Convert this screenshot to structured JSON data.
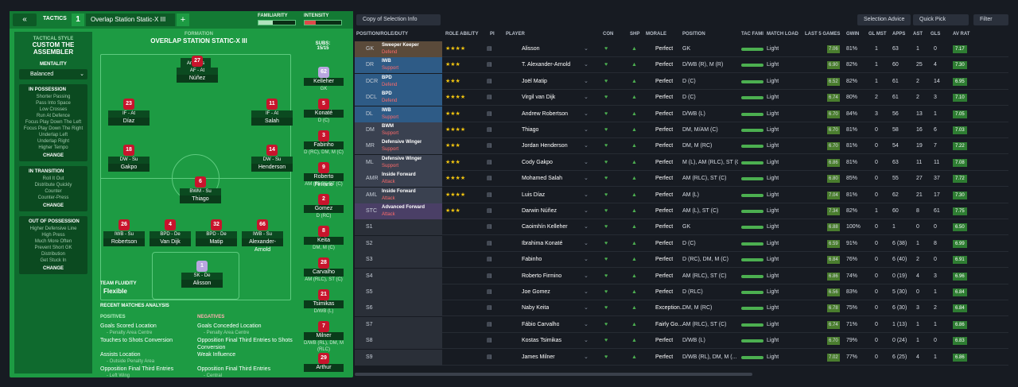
{
  "topbar": {
    "back": "«",
    "tactics": "TACTICS",
    "num": "1",
    "tactic_name": "Overlap Station Static-X III",
    "add": "+",
    "familiarity": "FAMILIARITY",
    "intensity": "INTENSITY",
    "familiarity_level": 0.4,
    "intensity_level": 0.3
  },
  "side": {
    "style_title": "TACTICAL STYLE",
    "style_name": "CUSTOM THE ASSEMBLER",
    "mentality_lbl": "MENTALITY",
    "mentality": "Balanced",
    "boxes": [
      {
        "title": "IN POSSESSION",
        "items": [
          "Shorter Passing",
          "Pass Into Space",
          "Low Crosses",
          "Run At Defence",
          "Focus Play Down The Left",
          "Focus Play Down The Right",
          "Underlap Left",
          "Underlap Right",
          "Higher Tempo"
        ],
        "change": "CHANGE"
      },
      {
        "title": "IN TRANSITION",
        "items": [
          "Roll It Out",
          "Distribute Quickly",
          "Counter",
          "Counter-Press"
        ],
        "change": "CHANGE"
      },
      {
        "title": "OUT OF POSSESSION",
        "items": [
          "Higher Defensive Line",
          "High Press",
          "Much More Often",
          "Prevent Short GK",
          "Distribution",
          "Get Stuck In"
        ],
        "change": "CHANGE"
      }
    ]
  },
  "pitch": {
    "formation_lbl": "FORMATION",
    "formation": "OVERLAP STATION STATIC-X III",
    "analysis": "Analysis",
    "subs_lbl": "SUBS:",
    "subs_count": "15/15",
    "players": [
      {
        "num": "27",
        "role": "AF - At",
        "name": "Núñez"
      },
      {
        "num": "23",
        "role": "IF - At",
        "name": "Díaz"
      },
      {
        "num": "11",
        "role": "IF - At",
        "name": "Salah"
      },
      {
        "num": "18",
        "role": "DW - Su",
        "name": "Gakpo"
      },
      {
        "num": "14",
        "role": "DW - Su",
        "name": "Henderson"
      },
      {
        "num": "6",
        "role": "BWM - Su",
        "name": "Thiago"
      },
      {
        "num": "26",
        "role": "IWB - Su",
        "name": "Robertson"
      },
      {
        "num": "4",
        "role": "BPD - De",
        "name": "Van Dijk"
      },
      {
        "num": "32",
        "role": "BPD - De",
        "name": "Matip"
      },
      {
        "num": "66",
        "role": "IWB - Su",
        "name": "Alexander-Arnold"
      },
      {
        "num": "1",
        "role": "SK - De",
        "name": "Alisson"
      }
    ],
    "subs": [
      {
        "num": "62",
        "name": "Kelleher",
        "pos": "GK"
      },
      {
        "num": "5",
        "name": "Konaté",
        "pos": "D (C)"
      },
      {
        "num": "3",
        "name": "Fabinho",
        "pos": "D (RC), DM, M (C)"
      },
      {
        "num": "9",
        "name": "Roberto Firmino",
        "pos": "AM (RLC), ST (C)"
      },
      {
        "num": "2",
        "name": "Gomez",
        "pos": "D (RC)"
      },
      {
        "num": "8",
        "name": "Keita",
        "pos": "DM, M (C)"
      },
      {
        "num": "28",
        "name": "Carvalho",
        "pos": "AM (RLC), ST (C)"
      },
      {
        "num": "21",
        "name": "Tsimikas",
        "pos": "D/WB (L)"
      },
      {
        "num": "7",
        "name": "Milner",
        "pos": "D/WB (RL), DM, M (RLC)"
      },
      {
        "num": "29",
        "name": "Arthur",
        "pos": ""
      }
    ],
    "fluidity_lbl": "TEAM FLUIDITY",
    "fluidity": "Flexible",
    "recent": "RECENT MATCHES ANALYSIS",
    "positives_lbl": "POSITIVES",
    "negatives_lbl": "NEGATIVES",
    "positives": [
      {
        "t": "Goals Scored Location",
        "s": "- Penalty Area Centre"
      },
      {
        "t": "Touches to Shots Conversion",
        "s": ""
      },
      {
        "t": "Assists Location",
        "s": "- Outside Penalty Area"
      },
      {
        "t": "Opposition Final Third Entries",
        "s": "- Left Wing"
      }
    ],
    "negatives": [
      {
        "t": "Goals Conceded Location",
        "s": "- Penalty Area Centre"
      },
      {
        "t": "Opposition Final Third Entries to Shots Conversion",
        "s": ""
      },
      {
        "t": "Weak Influence",
        "s": ""
      },
      {
        "t": "Opposition Final Third Entries",
        "s": "- Central"
      }
    ]
  },
  "right": {
    "selection_info": "Copy of Selection Info",
    "selection_advice": "Selection Advice",
    "quick_pick": "Quick Pick",
    "filter": "Filter",
    "headers": [
      "POSITION/ROLE/DUTY",
      "ROLE ABILITY",
      "PI",
      "PLAYER",
      "CON",
      "SHP",
      "MORALE",
      "POSITION",
      "TAC FAMI",
      "MATCH LOAD",
      "LAST 5 GAMES",
      "GWIN",
      "GL MST",
      "APPS",
      "AST",
      "GLS",
      "AV RAT"
    ],
    "rows": [
      {
        "pos": "GK",
        "role": "Sweeper Keeper",
        "duty": "Defend",
        "stars": "★★★★",
        "player": "Alisson",
        "morale": "Perfect",
        "position": "GK",
        "load": "Light",
        "form": "7.06",
        "gwin": "81%",
        "glmst": "1",
        "apps": "63",
        "ast": "1",
        "gls": "0",
        "av": "7.17"
      },
      {
        "pos": "DR",
        "role": "IWB",
        "duty": "Support",
        "stars": "★★★",
        "player": "T. Alexander-Arnold",
        "morale": "Perfect",
        "position": "D/WB (R), M (R)",
        "load": "Light",
        "form": "6.90",
        "gwin": "82%",
        "glmst": "1",
        "apps": "60",
        "ast": "25",
        "gls": "4",
        "av": "7.30"
      },
      {
        "pos": "DCR",
        "role": "BPD",
        "duty": "Defend",
        "stars": "★★★",
        "player": "Joël Matip",
        "morale": "Perfect",
        "position": "D (C)",
        "load": "Light",
        "form": "6.52",
        "gwin": "82%",
        "glmst": "1",
        "apps": "61",
        "ast": "2",
        "gls": "14",
        "av": "6.95"
      },
      {
        "pos": "DCL",
        "role": "BPD",
        "duty": "Defend",
        "stars": "★★★★",
        "player": "Virgil van Dijk",
        "morale": "Perfect",
        "position": "D (C)",
        "load": "Light",
        "form": "6.74",
        "gwin": "80%",
        "glmst": "2",
        "apps": "61",
        "ast": "2",
        "gls": "3",
        "av": "7.10"
      },
      {
        "pos": "DL",
        "role": "IWB",
        "duty": "Support",
        "stars": "★★★",
        "player": "Andrew Robertson",
        "morale": "Perfect",
        "position": "D/WB (L)",
        "load": "Light",
        "form": "6.70",
        "gwin": "84%",
        "glmst": "3",
        "apps": "56",
        "ast": "13",
        "gls": "1",
        "av": "7.05"
      },
      {
        "pos": "DM",
        "role": "BWM",
        "duty": "Support",
        "stars": "★★★★",
        "player": "Thiago",
        "morale": "Perfect",
        "position": "DM, M/AM (C)",
        "load": "Light",
        "form": "6.70",
        "gwin": "81%",
        "glmst": "0",
        "apps": "58",
        "ast": "16",
        "gls": "6",
        "av": "7.03"
      },
      {
        "pos": "MR",
        "role": "Defensive Winger",
        "duty": "Support",
        "stars": "★★★",
        "player": "Jordan Henderson",
        "morale": "Perfect",
        "position": "DM, M (RC)",
        "load": "Light",
        "form": "6.70",
        "gwin": "81%",
        "glmst": "0",
        "apps": "54",
        "ast": "19",
        "gls": "7",
        "av": "7.22"
      },
      {
        "pos": "ML",
        "role": "Defensive Winger",
        "duty": "Support",
        "stars": "★★★",
        "player": "Cody Gakpo",
        "morale": "Perfect",
        "position": "M (L), AM (RLC), ST (C)",
        "load": "Light",
        "form": "6.86",
        "gwin": "81%",
        "glmst": "0",
        "apps": "63",
        "ast": "11",
        "gls": "11",
        "av": "7.08"
      },
      {
        "pos": "AMR",
        "role": "Inside Forward",
        "duty": "Attack",
        "stars": "★★★★",
        "player": "Mohamed Salah",
        "morale": "Perfect",
        "position": "AM (RLC), ST (C)",
        "load": "Light",
        "form": "6.80",
        "gwin": "85%",
        "glmst": "0",
        "apps": "55",
        "ast": "27",
        "gls": "37",
        "av": "7.72"
      },
      {
        "pos": "AML",
        "role": "Inside Forward",
        "duty": "Attack",
        "stars": "★★★★",
        "player": "Luis Díaz",
        "morale": "Perfect",
        "position": "AM (L)",
        "load": "Light",
        "form": "7.04",
        "gwin": "81%",
        "glmst": "0",
        "apps": "62",
        "ast": "21",
        "gls": "17",
        "av": "7.30"
      },
      {
        "pos": "STC",
        "role": "Advanced Forward",
        "duty": "Attack",
        "stars": "★★★",
        "player": "Darwin Núñez",
        "morale": "Perfect",
        "position": "AM (L), ST (C)",
        "load": "Light",
        "form": "7.34",
        "gwin": "82%",
        "glmst": "1",
        "apps": "60",
        "ast": "8",
        "gls": "61",
        "av": "7.75"
      },
      {
        "pos": "S1",
        "role": "",
        "duty": "",
        "stars": "",
        "player": "Caoimhín Kelleher",
        "morale": "Perfect",
        "position": "GK",
        "load": "Light",
        "form": "6.88",
        "gwin": "100%",
        "glmst": "0",
        "apps": "1",
        "ast": "0",
        "gls": "0",
        "av": "6.50"
      },
      {
        "pos": "S2",
        "role": "",
        "duty": "",
        "stars": "",
        "player": "Ibrahima Konaté",
        "morale": "Perfect",
        "position": "D (C)",
        "load": "Light",
        "form": "6.59",
        "gwin": "91%",
        "glmst": "0",
        "apps": "6 (38)",
        "ast": "1",
        "gls": "8",
        "av": "6.99"
      },
      {
        "pos": "S3",
        "role": "",
        "duty": "",
        "stars": "",
        "player": "Fabinho",
        "morale": "Perfect",
        "position": "D (RC), DM, M (C)",
        "load": "Light",
        "form": "6.84",
        "gwin": "76%",
        "glmst": "0",
        "apps": "6 (40)",
        "ast": "2",
        "gls": "0",
        "av": "6.91"
      },
      {
        "pos": "S4",
        "role": "",
        "duty": "",
        "stars": "",
        "player": "Roberto Firmino",
        "morale": "Perfect",
        "position": "AM (RLC), ST (C)",
        "load": "Light",
        "form": "6.86",
        "gwin": "74%",
        "glmst": "0",
        "apps": "0 (19)",
        "ast": "4",
        "gls": "3",
        "av": "6.96"
      },
      {
        "pos": "S5",
        "role": "",
        "duty": "",
        "stars": "",
        "player": "Joe Gomez",
        "morale": "Perfect",
        "position": "D (RLC)",
        "load": "Light",
        "form": "6.56",
        "gwin": "83%",
        "glmst": "0",
        "apps": "5 (30)",
        "ast": "0",
        "gls": "1",
        "av": "6.84"
      },
      {
        "pos": "S6",
        "role": "",
        "duty": "",
        "stars": "",
        "player": "Naby Keita",
        "morale": "Exception...",
        "position": "DM, M (RC)",
        "load": "Light",
        "form": "6.78",
        "gwin": "75%",
        "glmst": "0",
        "apps": "6 (30)",
        "ast": "3",
        "gls": "2",
        "av": "6.84"
      },
      {
        "pos": "S7",
        "role": "",
        "duty": "",
        "stars": "",
        "player": "Fábio Carvalho",
        "morale": "Fairly Go...",
        "position": "AM (RLC), ST (C)",
        "load": "Light",
        "form": "6.74",
        "gwin": "71%",
        "glmst": "0",
        "apps": "1 (13)",
        "ast": "1",
        "gls": "1",
        "av": "6.86"
      },
      {
        "pos": "S8",
        "role": "",
        "duty": "",
        "stars": "",
        "player": "Kostas Tsimikas",
        "morale": "Perfect",
        "position": "D/WB (L)",
        "load": "Light",
        "form": "6.70",
        "gwin": "79%",
        "glmst": "0",
        "apps": "0 (24)",
        "ast": "1",
        "gls": "0",
        "av": "6.83"
      },
      {
        "pos": "S9",
        "role": "",
        "duty": "",
        "stars": "",
        "player": "James Milner",
        "morale": "Perfect",
        "position": "D/WB (RL), DM, M (...",
        "load": "Light",
        "form": "7.02",
        "gwin": "77%",
        "glmst": "0",
        "apps": "6 (25)",
        "ast": "4",
        "gls": "1",
        "av": "6.86"
      }
    ]
  }
}
